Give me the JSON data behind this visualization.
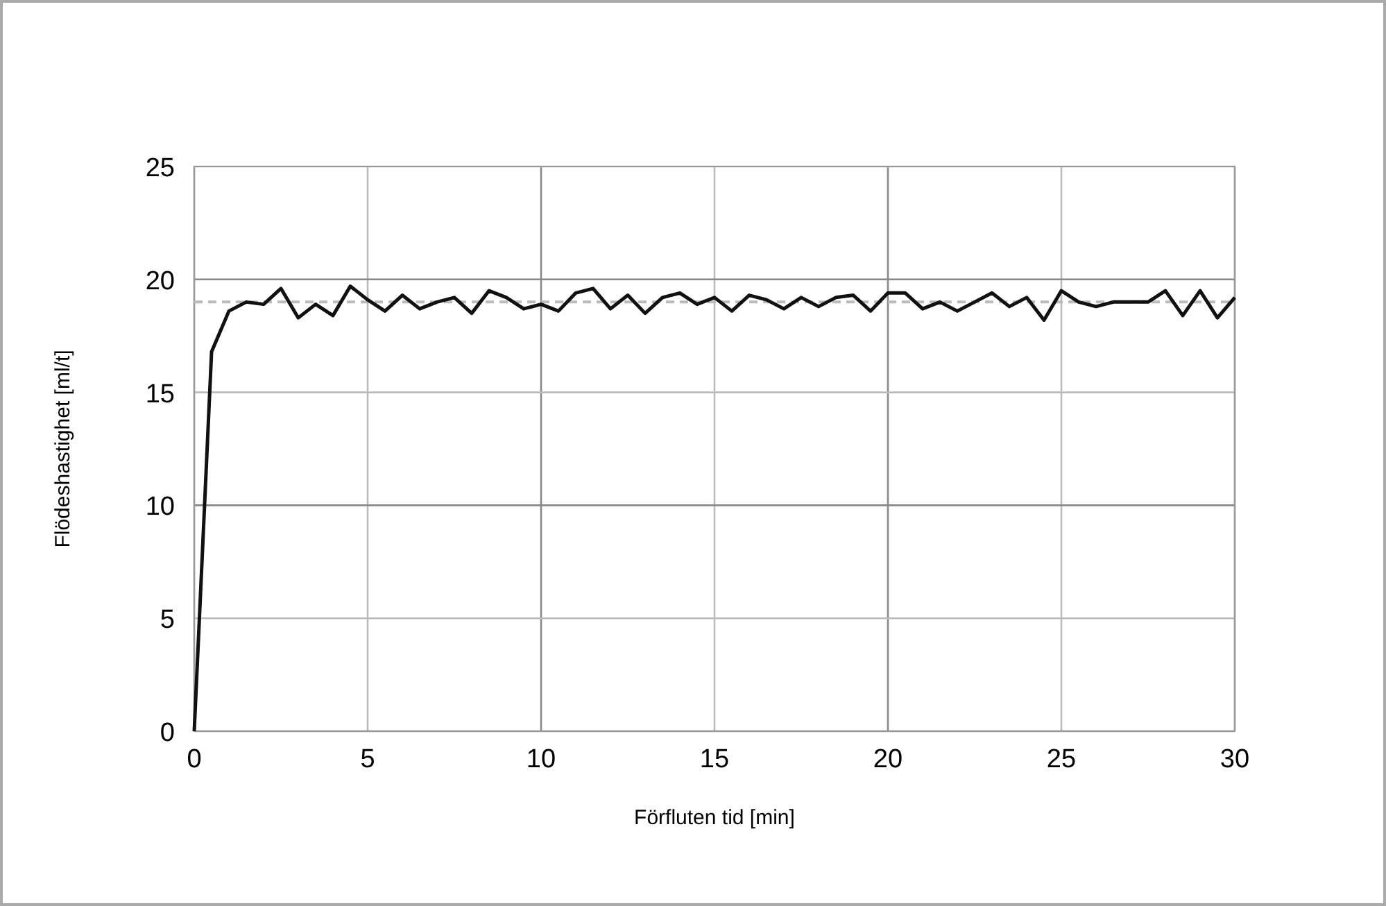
{
  "chart_data": {
    "type": "line",
    "xlabel": "Förfluten tid [min]",
    "ylabel": "Flödeshastighet [ml/t]",
    "xlim": [
      0,
      30
    ],
    "ylim": [
      0,
      25
    ],
    "xticks": [
      0,
      5,
      10,
      15,
      20,
      25,
      30
    ],
    "yticks": [
      0,
      5,
      10,
      15,
      20,
      25
    ],
    "grid": true,
    "marker": "none",
    "line_style": "solid",
    "ref_lines": [
      {
        "axis": "y",
        "value": 19,
        "color": "#bbbbbb",
        "line_style": "dashed"
      }
    ],
    "series": [
      {
        "color": "#111111",
        "x": [
          0,
          0.5,
          1,
          1.5,
          2,
          2.5,
          3,
          3.5,
          4,
          4.5,
          5,
          5.5,
          6,
          6.5,
          7,
          7.5,
          8,
          8.5,
          9,
          9.5,
          10,
          10.5,
          11,
          11.5,
          12,
          12.5,
          13,
          13.5,
          14,
          14.5,
          15,
          15.5,
          16,
          16.5,
          17,
          17.5,
          18,
          18.5,
          19,
          19.5,
          20,
          20.5,
          21,
          21.5,
          22,
          22.5,
          23,
          23.5,
          24,
          24.5,
          25,
          25.5,
          26,
          26.5,
          27,
          27.5,
          28,
          28.5,
          29,
          29.5,
          30
        ],
        "values": [
          0,
          16.8,
          18.6,
          19.0,
          18.9,
          19.6,
          18.3,
          18.9,
          18.4,
          19.7,
          19.1,
          18.6,
          19.3,
          18.7,
          19.0,
          19.2,
          18.5,
          19.5,
          19.2,
          18.7,
          18.9,
          18.6,
          19.4,
          19.6,
          18.7,
          19.3,
          18.5,
          19.2,
          19.4,
          18.9,
          19.2,
          18.6,
          19.3,
          19.1,
          18.7,
          19.2,
          18.8,
          19.2,
          19.3,
          18.6,
          19.4,
          19.4,
          18.7,
          19.0,
          18.6,
          19.0,
          19.4,
          18.8,
          19.2,
          18.2,
          19.5,
          19.0,
          18.8,
          19.0,
          19.0,
          19.0,
          19.5,
          18.4,
          19.5,
          18.3,
          19.2
        ]
      }
    ]
  }
}
